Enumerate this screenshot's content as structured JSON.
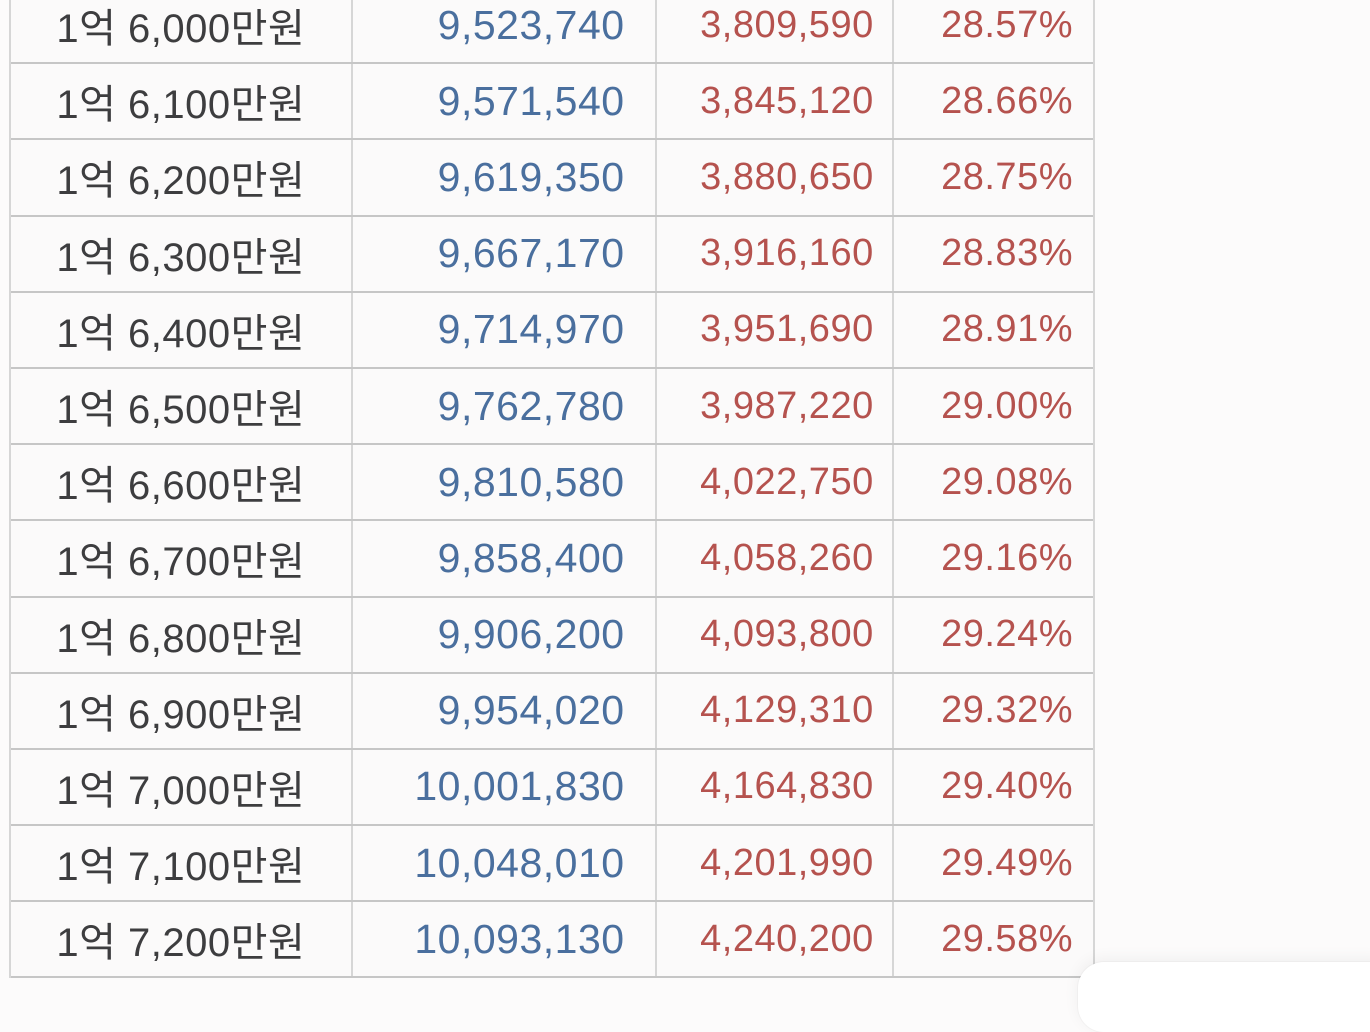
{
  "page": {
    "background": "#fcfbfb"
  },
  "colors": {
    "page_bg": "#fcfbfb",
    "cell_bg": "#fbfafa",
    "label_text": "#3d3d3f",
    "blue_value": "#4a6f9e",
    "red_value": "#b5524e",
    "row_border": "#c6c6c6",
    "col_border": "#d6d6d6"
  },
  "table": {
    "columns": [
      {
        "name": "annual-salary",
        "align": "center",
        "color": "#3d3d3f"
      },
      {
        "name": "blue-amount",
        "align": "right",
        "color": "#4a6f9e"
      },
      {
        "name": "red-amount",
        "align": "right",
        "color": "#b5524e"
      },
      {
        "name": "percent-rate",
        "align": "right",
        "color": "#b5524e"
      }
    ],
    "rows": [
      {
        "label": "1억 6,000만원",
        "blue": "9,523,740",
        "red": "3,809,590",
        "pct": "28.57%"
      },
      {
        "label": "1억 6,100만원",
        "blue": "9,571,540",
        "red": "3,845,120",
        "pct": "28.66%"
      },
      {
        "label": "1억 6,200만원",
        "blue": "9,619,350",
        "red": "3,880,650",
        "pct": "28.75%"
      },
      {
        "label": "1억 6,300만원",
        "blue": "9,667,170",
        "red": "3,916,160",
        "pct": "28.83%"
      },
      {
        "label": "1억 6,400만원",
        "blue": "9,714,970",
        "red": "3,951,690",
        "pct": "28.91%"
      },
      {
        "label": "1억 6,500만원",
        "blue": "9,762,780",
        "red": "3,987,220",
        "pct": "29.00%"
      },
      {
        "label": "1억 6,600만원",
        "blue": "9,810,580",
        "red": "4,022,750",
        "pct": "29.08%"
      },
      {
        "label": "1억 6,700만원",
        "blue": "9,858,400",
        "red": "4,058,260",
        "pct": "29.16%"
      },
      {
        "label": "1억 6,800만원",
        "blue": "9,906,200",
        "red": "4,093,800",
        "pct": "29.24%"
      },
      {
        "label": "1억 6,900만원",
        "blue": "9,954,020",
        "red": "4,129,310",
        "pct": "29.32%"
      },
      {
        "label": "1억 7,000만원",
        "blue": "10,001,830",
        "red": "4,164,830",
        "pct": "29.40%"
      },
      {
        "label": "1억 7,100만원",
        "blue": "10,048,010",
        "red": "4,201,990",
        "pct": "29.49%"
      },
      {
        "label": "1억 7,200만원",
        "blue": "10,093,130",
        "red": "4,240,200",
        "pct": "29.58%"
      }
    ]
  }
}
